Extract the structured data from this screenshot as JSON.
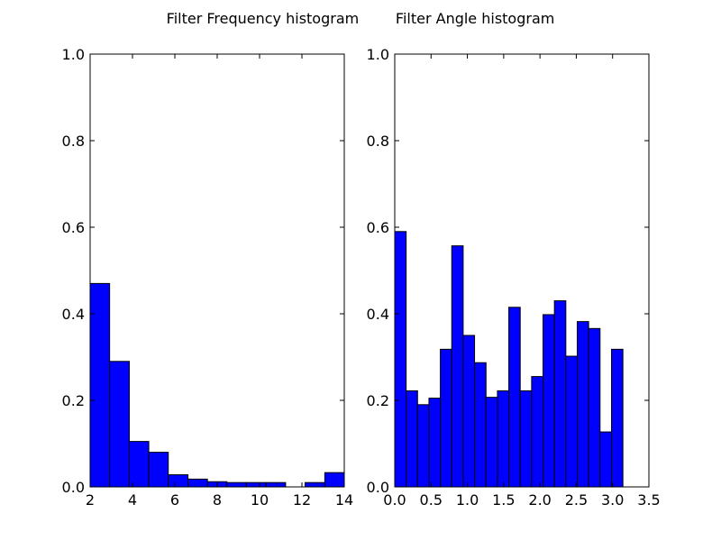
{
  "figure": {
    "title": "Filter Frequency histogram        Filter Angle histogram",
    "bar_color": "#0000ff",
    "edge_color": "#000000"
  },
  "chart_data": [
    {
      "type": "bar",
      "title": "",
      "xlabel": "",
      "ylabel": "",
      "xlim": [
        2,
        14
      ],
      "ylim": [
        0,
        1.0
      ],
      "xticks": [
        2,
        4,
        6,
        8,
        10,
        12,
        14
      ],
      "xtick_labels": [
        "2",
        "4",
        "6",
        "8",
        "10",
        "12",
        "14"
      ],
      "yticks": [
        0,
        0.2,
        0.4,
        0.6,
        0.8,
        1.0
      ],
      "ytick_labels": [
        "0.0",
        "0.2",
        "0.4",
        "0.6",
        "0.8",
        "1.0"
      ],
      "bins": [
        {
          "x0": 2.0,
          "x1": 2.92,
          "value": 0.47
        },
        {
          "x0": 2.92,
          "x1": 3.85,
          "value": 0.29
        },
        {
          "x0": 3.85,
          "x1": 4.77,
          "value": 0.105
        },
        {
          "x0": 4.77,
          "x1": 5.69,
          "value": 0.08
        },
        {
          "x0": 5.69,
          "x1": 6.62,
          "value": 0.028
        },
        {
          "x0": 6.62,
          "x1": 7.54,
          "value": 0.018
        },
        {
          "x0": 7.54,
          "x1": 8.46,
          "value": 0.012
        },
        {
          "x0": 8.46,
          "x1": 9.38,
          "value": 0.01
        },
        {
          "x0": 9.38,
          "x1": 10.31,
          "value": 0.01
        },
        {
          "x0": 10.31,
          "x1": 11.23,
          "value": 0.01
        },
        {
          "x0": 11.23,
          "x1": 12.15,
          "value": 0.0
        },
        {
          "x0": 12.15,
          "x1": 13.08,
          "value": 0.01
        },
        {
          "x0": 13.08,
          "x1": 14.0,
          "value": 0.033
        }
      ],
      "grid": false
    },
    {
      "type": "bar",
      "title": "",
      "xlabel": "",
      "ylabel": "",
      "xlim": [
        0,
        3.5
      ],
      "ylim": [
        0,
        1.0
      ],
      "xticks": [
        0,
        0.5,
        1.0,
        1.5,
        2.0,
        2.5,
        3.0,
        3.5
      ],
      "xtick_labels": [
        "0.0",
        "0.5",
        "1.0",
        "1.5",
        "2.0",
        "2.5",
        "3.0",
        "3.5"
      ],
      "yticks": [
        0,
        0.2,
        0.4,
        0.6,
        0.8,
        1.0
      ],
      "ytick_labels": [
        "0.0",
        "0.2",
        "0.4",
        "0.6",
        "0.8",
        "1.0"
      ],
      "bins": [
        {
          "x0": 0.0,
          "x1": 0.157,
          "value": 0.59
        },
        {
          "x0": 0.157,
          "x1": 0.314,
          "value": 0.222
        },
        {
          "x0": 0.314,
          "x1": 0.471,
          "value": 0.19
        },
        {
          "x0": 0.471,
          "x1": 0.628,
          "value": 0.205
        },
        {
          "x0": 0.628,
          "x1": 0.785,
          "value": 0.318
        },
        {
          "x0": 0.785,
          "x1": 0.942,
          "value": 0.557
        },
        {
          "x0": 0.942,
          "x1": 1.099,
          "value": 0.35
        },
        {
          "x0": 1.099,
          "x1": 1.257,
          "value": 0.287
        },
        {
          "x0": 1.257,
          "x1": 1.414,
          "value": 0.207
        },
        {
          "x0": 1.414,
          "x1": 1.571,
          "value": 0.222
        },
        {
          "x0": 1.571,
          "x1": 1.728,
          "value": 0.415
        },
        {
          "x0": 1.728,
          "x1": 1.885,
          "value": 0.222
        },
        {
          "x0": 1.885,
          "x1": 2.042,
          "value": 0.255
        },
        {
          "x0": 2.042,
          "x1": 2.199,
          "value": 0.398
        },
        {
          "x0": 2.199,
          "x1": 2.356,
          "value": 0.43
        },
        {
          "x0": 2.356,
          "x1": 2.513,
          "value": 0.302
        },
        {
          "x0": 2.513,
          "x1": 2.67,
          "value": 0.382
        },
        {
          "x0": 2.67,
          "x1": 2.827,
          "value": 0.366
        },
        {
          "x0": 2.827,
          "x1": 2.985,
          "value": 0.127
        },
        {
          "x0": 2.985,
          "x1": 3.142,
          "value": 0.318
        }
      ],
      "grid": false
    }
  ]
}
